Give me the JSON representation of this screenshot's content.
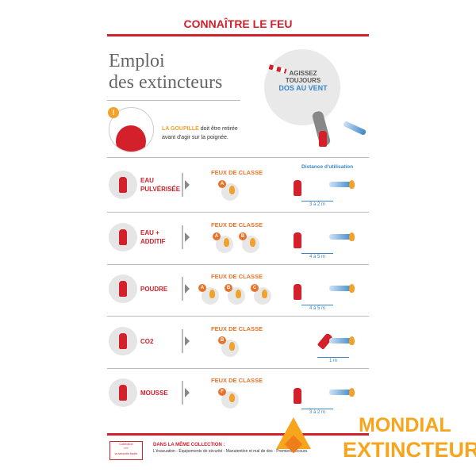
{
  "header": {
    "title": "CONNAÎTRE LE FEU"
  },
  "heading": {
    "line1": "Emploi",
    "line2": "des extincteurs"
  },
  "wind": {
    "line1": "AGISSEZ",
    "line2": "TOUJOURS",
    "line3": "DOS AU VENT"
  },
  "goupille": {
    "highlight": "LA GOUPILLE",
    "text1": " doit être retirée",
    "text2": "avant d'agir sur la poignée.",
    "badge": "!"
  },
  "distance_label": "Distance d'utilisation",
  "feux_label": "FEUX DE CLASSE",
  "rows": [
    {
      "name": "EAU PULVÉRISÉE",
      "l1": "EAU",
      "l2": "PULVÉRISÉE",
      "classes": [
        "A"
      ],
      "distance": "3 à 2 m"
    },
    {
      "name": "EAU + ADDITIF",
      "l1": "EAU +",
      "l2": "ADDITIF",
      "classes": [
        "A",
        "B"
      ],
      "distance": "4 à 5 m"
    },
    {
      "name": "POUDRE",
      "l1": "POUDRE",
      "l2": "",
      "classes": [
        "A",
        "B",
        "C"
      ],
      "distance": "4 à 5 m"
    },
    {
      "name": "CO2",
      "l1": "CO2",
      "l2": "",
      "classes": [
        "B"
      ],
      "distance": "1 m"
    },
    {
      "name": "MOUSSE",
      "l1": "MOUSSE",
      "l2": "",
      "classes": [
        "F"
      ],
      "distance": "3 à 2 m"
    }
  ],
  "footer": {
    "collection_title": "DANS LA MÊME COLLECTION :",
    "collection_text": "L'évacuation - Équipements de sécurité - Manutention et mal de dos - Premiers secours.",
    "logo_top": "Collection",
    "logo_bottom": "la sécurité facile"
  },
  "brand": {
    "line1": "MONDIAL",
    "line2": "EXTINCTEUR",
    "color": "#f7a51c"
  }
}
